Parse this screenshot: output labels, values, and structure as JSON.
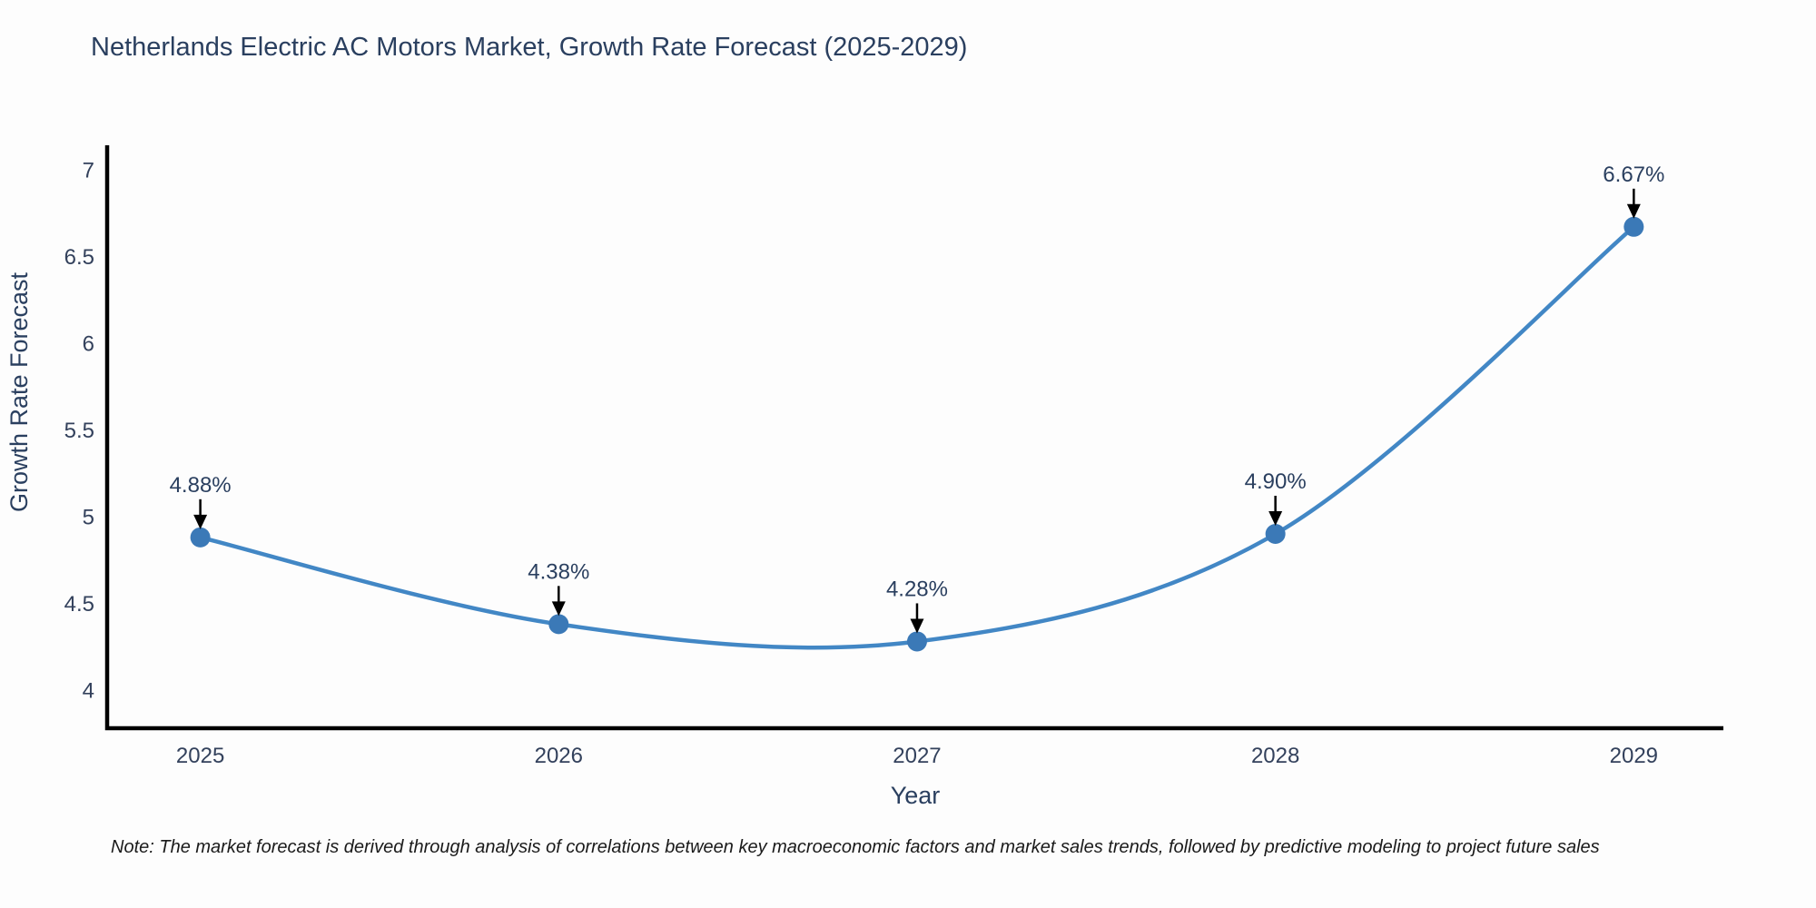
{
  "title": "Netherlands Electric AC Motors Market, Growth Rate Forecast (2025-2029)",
  "note": "Note: The market forecast is derived through analysis of correlations between key macroeconomic factors and market sales trends, followed by predictive modeling to project future sales",
  "chart_data": {
    "type": "line",
    "title": "Netherlands Electric AC Motors Market, Growth Rate Forecast (2025-2029)",
    "xlabel": "Year",
    "ylabel": "Growth Rate Forecast",
    "categories": [
      2025,
      2026,
      2027,
      2028,
      2029
    ],
    "values": [
      4.88,
      4.38,
      4.28,
      4.9,
      6.67
    ],
    "point_labels": [
      "4.88%",
      "4.38%",
      "4.28%",
      "4.90%",
      "6.67%"
    ],
    "y_ticks": [
      4,
      4.5,
      5,
      5.5,
      6,
      6.5,
      7
    ],
    "xlim": [
      2024.74,
      2029.25
    ],
    "ylim": [
      3.78,
      7.14
    ],
    "grid": false,
    "legend_position": "none",
    "line_shape": "spline",
    "annotations_have_arrows": true,
    "colors": {
      "line": "#4287c5",
      "marker": "#3b79b7",
      "axis": "#000000",
      "arrow": "#000000",
      "title_text": "#2a3f5f",
      "tick_text": "#33415c"
    }
  }
}
